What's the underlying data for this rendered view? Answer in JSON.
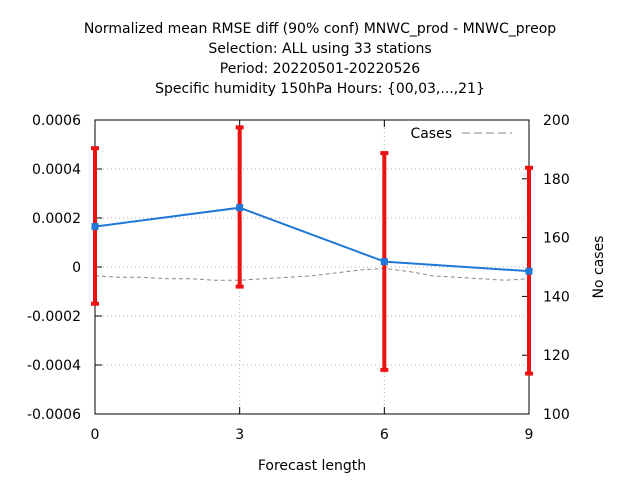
{
  "title_lines": [
    "Normalized mean RMSE diff (90% conf) MNWC_prod - MNWC_preop",
    "Selection: ALL using    33 stations",
    "Period: 20220501-20220526",
    "Specific humidity 150hPa   Hours: {00,03,...,21}"
  ],
  "chart_data": {
    "type": "line",
    "xlabel": "Forecast length",
    "ylabel": "",
    "y2label": "No cases",
    "x": [
      0,
      3,
      6,
      9
    ],
    "xlim": [
      0,
      9
    ],
    "ylim": [
      -0.0006,
      0.0006
    ],
    "y2lim": [
      100,
      200
    ],
    "x_ticks": [
      "0",
      "3",
      "6",
      "9"
    ],
    "y_ticks": [
      "-0.0006",
      "-0.0004",
      "-0.0002",
      "0",
      "0.0002",
      "0.0004",
      "0.0006"
    ],
    "y2_ticks": [
      "100",
      "120",
      "140",
      "160",
      "180",
      "200"
    ],
    "grid": true,
    "legend": {
      "position": "top-right",
      "entries": [
        "Cases"
      ]
    },
    "series": [
      {
        "values": [
          0.000165,
          0.000242,
          2.2e-05,
          -1.7e-05
        ],
        "color": "#1f78d8",
        "axis": "left",
        "error_bars": [
          {
            "low": -0.00015,
            "high": 0.000485
          },
          {
            "low": -8e-05,
            "high": 0.00057
          },
          {
            "low": -0.00042,
            "high": 0.000465
          },
          {
            "low": -0.000435,
            "high": 0.000405
          }
        ],
        "error_color": "#ee1111"
      },
      {
        "name": "Cases",
        "x": [
          0,
          0.5,
          1,
          1.5,
          2,
          2.5,
          3,
          3.5,
          4,
          4.5,
          5,
          5.5,
          6,
          6.5,
          7,
          7.5,
          8,
          8.5,
          9
        ],
        "values": [
          147,
          146.5,
          146.5,
          146,
          146,
          145.5,
          145.5,
          146,
          146.5,
          147,
          148,
          149,
          149.5,
          148.5,
          147,
          146.5,
          146,
          145.5,
          146
        ],
        "axis": "right",
        "color": "#888888",
        "style": "dashed"
      }
    ]
  }
}
